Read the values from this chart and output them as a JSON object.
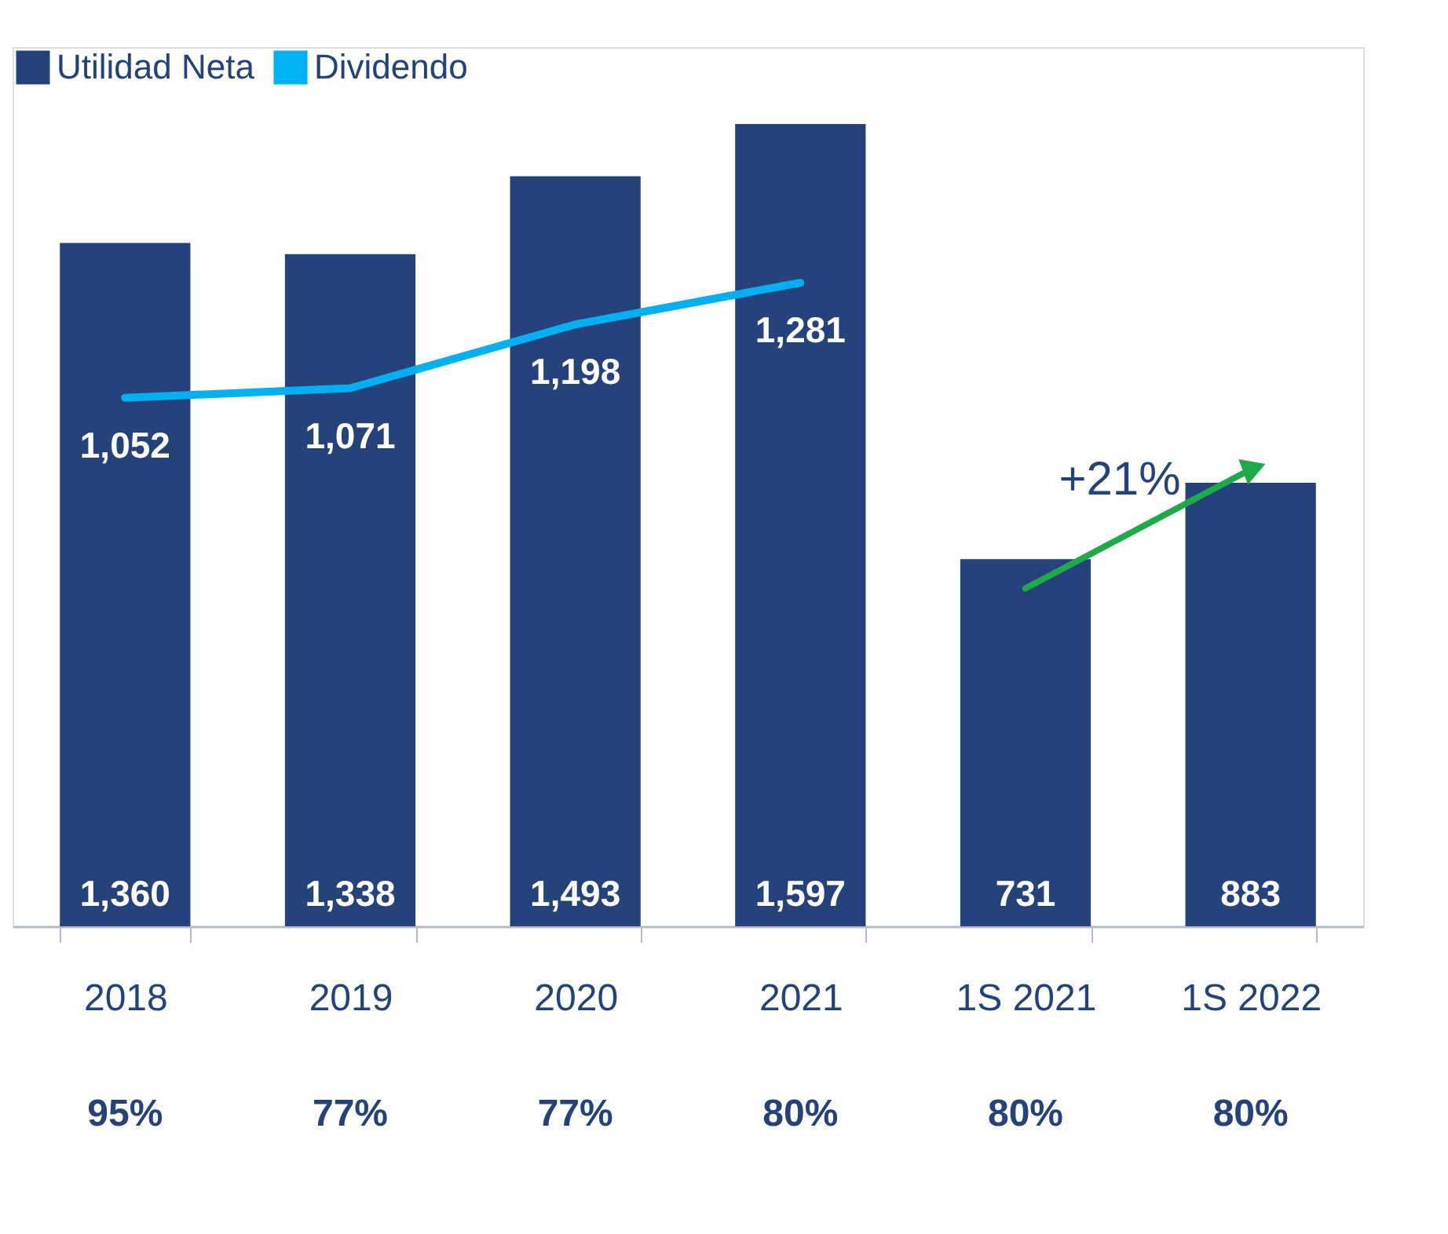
{
  "chart_data": {
    "type": "bar",
    "categories": [
      "2018",
      "2019",
      "2020",
      "2021",
      "1S 2021",
      "1S 2022"
    ],
    "series": [
      {
        "name": "Utilidad Neta",
        "color": "#25427a",
        "values": [
          1360,
          1338,
          1493,
          1597,
          731,
          883
        ],
        "value_labels": [
          "1,360",
          "1,338",
          "1,493",
          "1,597",
          "731",
          "883"
        ]
      },
      {
        "name": "Dividendo",
        "type": "line",
        "color": "#00b0f0",
        "values": [
          1052,
          1071,
          1198,
          1281,
          null,
          null
        ],
        "value_labels": [
          "1,052",
          "1,071",
          "1,198",
          "1,281",
          null,
          null
        ]
      }
    ],
    "ylim": [
      0,
      1750
    ],
    "tick_labels": "x",
    "grid": false,
    "legend": "top left",
    "annotations": [
      "95%",
      "77%",
      "77%",
      "80%",
      "80%",
      "80%",
      {
        "text": "+21%",
        "x": "1S 2022",
        "y": 883
      }
    ]
  }
}
